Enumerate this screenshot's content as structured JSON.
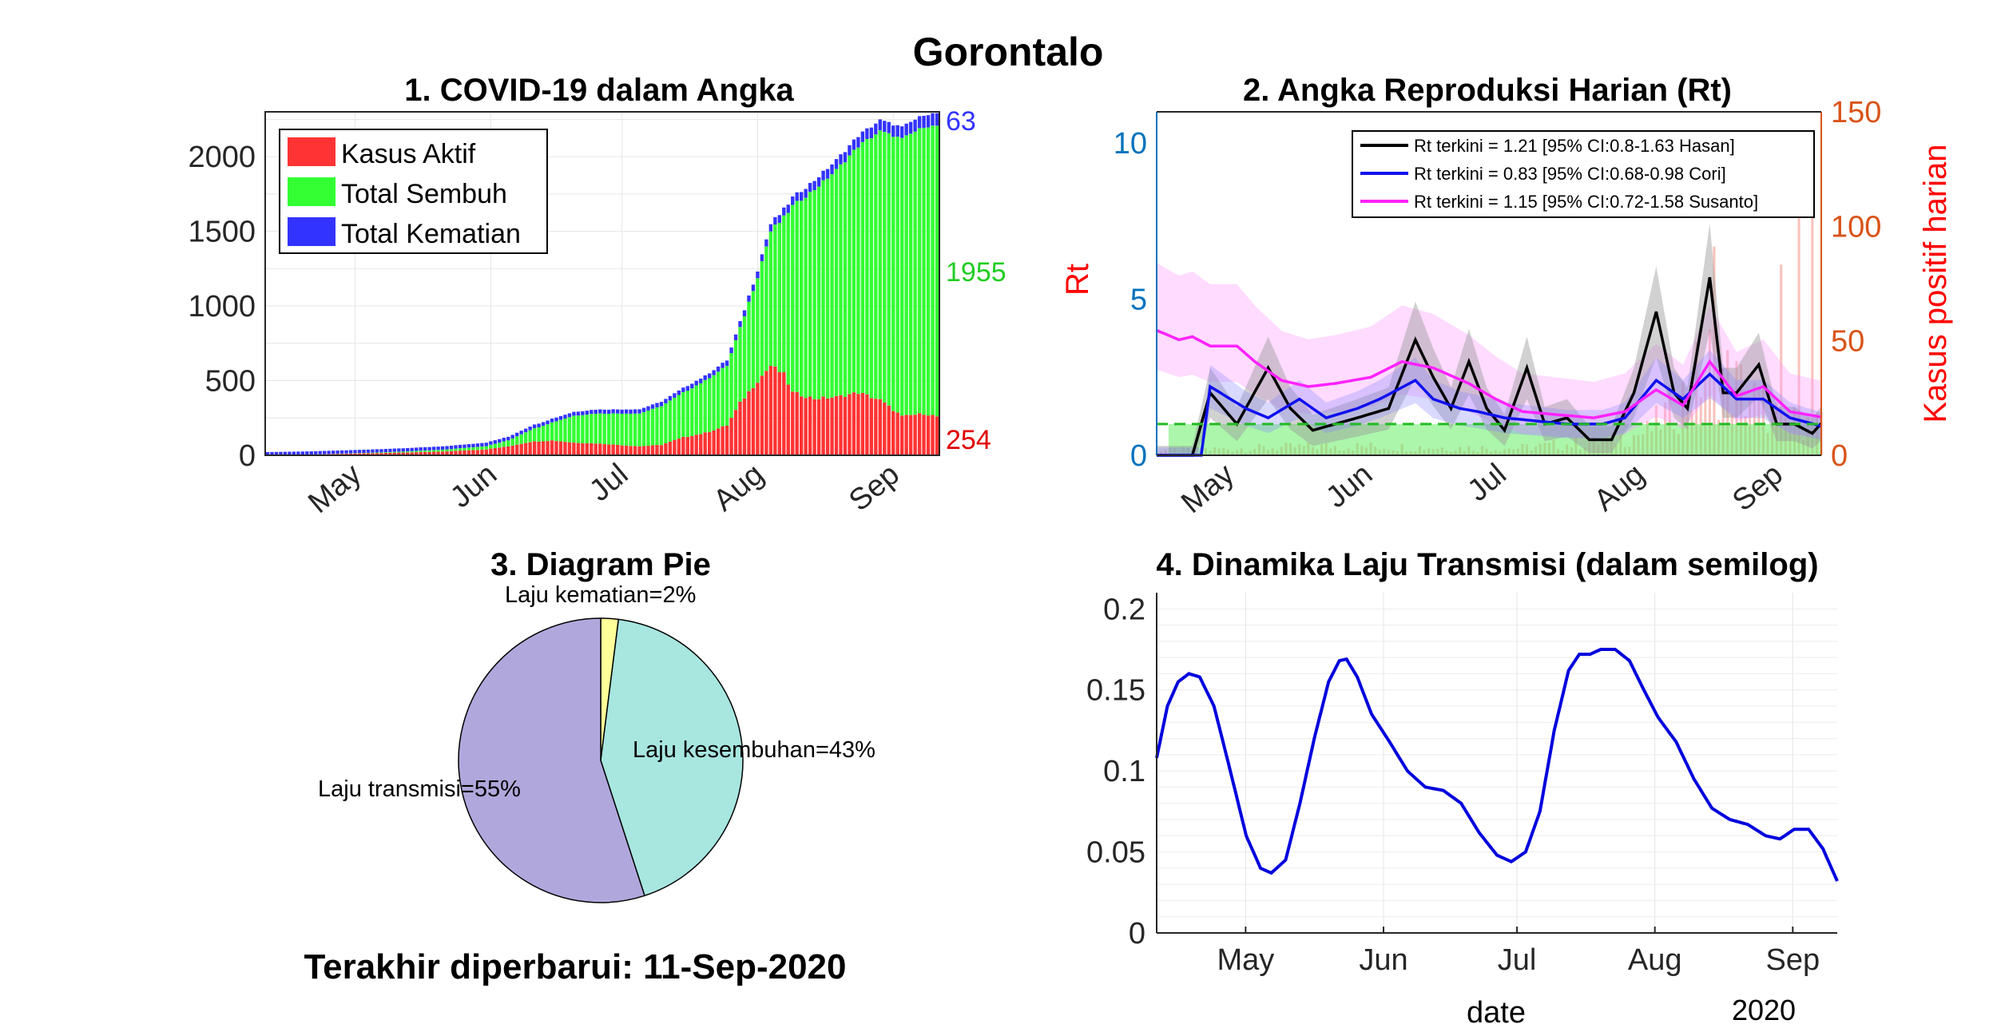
{
  "page_title": "Gorontalo",
  "footer": "Terakhir diperbarui: 11-Sep-2020",
  "colors": {
    "active": "#ff3333",
    "recovered": "#33ff33",
    "deaths": "#3333ff",
    "rt_hasan": "#000000",
    "rt_cori": "#1010ee",
    "rt_susanto": "#ff22ff",
    "left_axis": "#0072bd",
    "right_axis": "#d95319",
    "rt_label": "#ff0000",
    "pie_transmisi": "#b0a8dc",
    "pie_kesembuhan": "#a8e6e0",
    "pie_kematian": "#ffff99"
  },
  "chart_data": [
    {
      "id": "panel1",
      "type": "bar",
      "stacked": true,
      "title": "1. COVID-19 dalam Angka",
      "x_range": [
        "2020-04-11",
        "2020-09-11"
      ],
      "x_ticks": [
        "May",
        "Jun",
        "Jul",
        "Aug",
        "Sep"
      ],
      "ylim": [
        0,
        2300
      ],
      "y_ticks": [
        0,
        500,
        1000,
        1500,
        2000
      ],
      "legend": {
        "position": "top-left",
        "entries": [
          "Kasus Aktif",
          "Total Sembuh",
          "Total Kematian"
        ]
      },
      "grid": true,
      "end_labels": {
        "deaths": "63",
        "recovered": "1955",
        "active": "254"
      },
      "series": [
        {
          "name": "Kasus Aktif",
          "keys": [
            [
              0,
              0
            ],
            [
              10,
              5
            ],
            [
              20,
              12
            ],
            [
              30,
              18
            ],
            [
              40,
              25
            ],
            [
              50,
              40
            ],
            [
              55,
              60
            ],
            [
              60,
              90
            ],
            [
              65,
              100
            ],
            [
              70,
              85
            ],
            [
              75,
              80
            ],
            [
              80,
              70
            ],
            [
              85,
              60
            ],
            [
              90,
              70
            ],
            [
              95,
              120
            ],
            [
              100,
              150
            ],
            [
              105,
              200
            ],
            [
              108,
              350
            ],
            [
              112,
              500
            ],
            [
              115,
              600
            ],
            [
              118,
              540
            ],
            [
              120,
              420
            ],
            [
              125,
              380
            ],
            [
              130,
              390
            ],
            [
              135,
              420
            ],
            [
              140,
              370
            ],
            [
              145,
              260
            ],
            [
              150,
              280
            ],
            [
              154,
              254
            ]
          ]
        },
        {
          "name": "Total Sembuh",
          "keys": [
            [
              0,
              0
            ],
            [
              10,
              0
            ],
            [
              20,
              2
            ],
            [
              30,
              6
            ],
            [
              40,
              12
            ],
            [
              50,
              22
            ],
            [
              55,
              40
            ],
            [
              60,
              80
            ],
            [
              65,
              120
            ],
            [
              70,
              180
            ],
            [
              75,
              200
            ],
            [
              80,
              210
            ],
            [
              85,
              220
            ],
            [
              90,
              260
            ],
            [
              95,
              300
            ],
            [
              100,
              350
            ],
            [
              105,
              400
            ],
            [
              108,
              500
            ],
            [
              112,
              700
            ],
            [
              115,
              900
            ],
            [
              118,
              1050
            ],
            [
              120,
              1250
            ],
            [
              125,
              1400
            ],
            [
              130,
              1520
            ],
            [
              135,
              1650
            ],
            [
              140,
              1800
            ],
            [
              145,
              1860
            ],
            [
              150,
              1920
            ],
            [
              154,
              1955
            ]
          ]
        },
        {
          "name": "Total Kematian",
          "keys": [
            [
              0,
              0
            ],
            [
              20,
              0
            ],
            [
              40,
              1
            ],
            [
              60,
              3
            ],
            [
              80,
              6
            ],
            [
              100,
              10
            ],
            [
              110,
              20
            ],
            [
              120,
              35
            ],
            [
              130,
              45
            ],
            [
              140,
              52
            ],
            [
              150,
              60
            ],
            [
              154,
              63
            ]
          ]
        }
      ]
    },
    {
      "id": "panel2",
      "type": "line",
      "title": "2. Angka Reproduksi Harian (Rt)",
      "x_range": [
        "2020-04-15",
        "2020-09-11"
      ],
      "x_ticks": [
        "May",
        "Jun",
        "Jul",
        "Aug",
        "Sep"
      ],
      "left_axis": {
        "label": "Rt",
        "ylim": [
          0,
          11
        ],
        "ticks": [
          0,
          5,
          10
        ]
      },
      "right_axis": {
        "label": "Kasus positif harian",
        "ylim": [
          0,
          150
        ],
        "ticks": [
          0,
          50,
          100,
          150
        ]
      },
      "threshold": 1,
      "legend": {
        "position": "top-right",
        "entries": [
          "Rt terkini = 1.21 [95% CI:0.8-1.63 Hasan]",
          "Rt terkini = 0.83 [95% CI:0.68-0.98 Cori]",
          "Rt terkini = 1.15 [95% CI:0.72-1.58 Susanto]"
        ]
      },
      "series": [
        {
          "name": "Hasan",
          "keys": [
            [
              0,
              0
            ],
            [
              8,
              0
            ],
            [
              12,
              2
            ],
            [
              18,
              1
            ],
            [
              25,
              2.8
            ],
            [
              30,
              1.5
            ],
            [
              35,
              0.8
            ],
            [
              40,
              1
            ],
            [
              45,
              1.2
            ],
            [
              52,
              1.5
            ],
            [
              58,
              3.7
            ],
            [
              62,
              2.5
            ],
            [
              66,
              1.5
            ],
            [
              70,
              3
            ],
            [
              74,
              1.5
            ],
            [
              78,
              0.8
            ],
            [
              83,
              2.8
            ],
            [
              87,
              1
            ],
            [
              92,
              1.2
            ],
            [
              97,
              0.5
            ],
            [
              102,
              0.5
            ],
            [
              107,
              2
            ],
            [
              112,
              4.6
            ],
            [
              116,
              2
            ],
            [
              119,
              1.5
            ],
            [
              124,
              5.7
            ],
            [
              127,
              2
            ],
            [
              130,
              2
            ],
            [
              135,
              2.9
            ],
            [
              139,
              1
            ],
            [
              143,
              1
            ],
            [
              147,
              0.7
            ],
            [
              152,
              1.5
            ],
            [
              157,
              0.5
            ],
            [
              160,
              1.2
            ],
            [
              165,
              1.7
            ],
            [
              168,
              1
            ],
            [
              175,
              2.3
            ],
            [
              179,
              1.3
            ],
            [
              182,
              1.2
            ]
          ]
        },
        {
          "name": "Cori",
          "keys": [
            [
              0,
              0
            ],
            [
              10,
              0
            ],
            [
              12,
              2.2
            ],
            [
              20,
              1.5
            ],
            [
              25,
              1.2
            ],
            [
              32,
              1.8
            ],
            [
              38,
              1.2
            ],
            [
              45,
              1.5
            ],
            [
              50,
              1.8
            ],
            [
              58,
              2.4
            ],
            [
              62,
              1.8
            ],
            [
              68,
              1.5
            ],
            [
              72,
              1.4
            ],
            [
              78,
              1.2
            ],
            [
              85,
              1.1
            ],
            [
              92,
              1
            ],
            [
              100,
              1
            ],
            [
              105,
              1.2
            ],
            [
              112,
              2.4
            ],
            [
              118,
              1.8
            ],
            [
              124,
              2.6
            ],
            [
              130,
              1.8
            ],
            [
              136,
              1.8
            ],
            [
              142,
              1.2
            ],
            [
              150,
              0.9
            ],
            [
              158,
              0.8
            ],
            [
              165,
              0.9
            ],
            [
              172,
              1.2
            ],
            [
              178,
              1.1
            ],
            [
              182,
              0.83
            ]
          ]
        },
        {
          "name": "Susanto",
          "keys": [
            [
              0,
              4
            ],
            [
              5,
              3.7
            ],
            [
              8,
              3.8
            ],
            [
              12,
              3.5
            ],
            [
              18,
              3.5
            ],
            [
              22,
              3
            ],
            [
              28,
              2.4
            ],
            [
              34,
              2.2
            ],
            [
              40,
              2.3
            ],
            [
              48,
              2.5
            ],
            [
              55,
              3
            ],
            [
              62,
              2.8
            ],
            [
              70,
              2.3
            ],
            [
              76,
              1.8
            ],
            [
              82,
              1.4
            ],
            [
              90,
              1.3
            ],
            [
              98,
              1.2
            ],
            [
              105,
              1.4
            ],
            [
              112,
              2.1
            ],
            [
              118,
              1.6
            ],
            [
              124,
              3
            ],
            [
              130,
              1.9
            ],
            [
              136,
              2.2
            ],
            [
              142,
              1.4
            ],
            [
              150,
              1.2
            ],
            [
              158,
              0.8
            ],
            [
              165,
              1.2
            ],
            [
              172,
              1.3
            ],
            [
              178,
              1.4
            ],
            [
              182,
              1.15
            ]
          ]
        }
      ]
    },
    {
      "id": "panel3",
      "type": "pie",
      "title": "3. Diagram Pie",
      "slices": [
        {
          "label": "Laju kematian=2%",
          "value": 2
        },
        {
          "label": "Laju kesembuhan=43%",
          "value": 43
        },
        {
          "label": "Laju transmisi=55%",
          "value": 55
        }
      ]
    },
    {
      "id": "panel4",
      "type": "line",
      "title": "4. Dinamika Laju Transmisi (dalam semilog)",
      "x_range": [
        "2020-04-11",
        "2020-09-11"
      ],
      "x_ticks": [
        "May",
        "Jun",
        "Jul",
        "Aug",
        "Sep"
      ],
      "xlabel": "date",
      "x_year": "2020",
      "ylim": [
        0,
        0.21
      ],
      "y_ticks": [
        "0",
        "0.05",
        "0.1",
        "0.15",
        "0.2"
      ],
      "grid": true,
      "series": [
        {
          "name": "",
          "keys": [
            [
              0,
              0.108
            ],
            [
              3,
              0.14
            ],
            [
              6,
              0.155
            ],
            [
              9,
              0.16
            ],
            [
              12,
              0.158
            ],
            [
              16,
              0.14
            ],
            [
              20,
              0.105
            ],
            [
              25,
              0.06
            ],
            [
              29,
              0.04
            ],
            [
              32,
              0.037
            ],
            [
              36,
              0.045
            ],
            [
              40,
              0.08
            ],
            [
              44,
              0.12
            ],
            [
              48,
              0.155
            ],
            [
              51,
              0.168
            ],
            [
              53,
              0.169
            ],
            [
              56,
              0.158
            ],
            [
              60,
              0.135
            ],
            [
              65,
              0.118
            ],
            [
              70,
              0.1
            ],
            [
              75,
              0.09
            ],
            [
              80,
              0.088
            ],
            [
              85,
              0.08
            ],
            [
              90,
              0.062
            ],
            [
              95,
              0.048
            ],
            [
              99,
              0.044
            ],
            [
              103,
              0.05
            ],
            [
              107,
              0.075
            ],
            [
              111,
              0.125
            ],
            [
              115,
              0.162
            ],
            [
              118,
              0.172
            ],
            [
              121,
              0.172
            ],
            [
              124,
              0.175
            ],
            [
              128,
              0.175
            ],
            [
              132,
              0.168
            ],
            [
              136,
              0.15
            ],
            [
              140,
              0.133
            ],
            [
              145,
              0.118
            ],
            [
              150,
              0.095
            ],
            [
              155,
              0.077
            ],
            [
              160,
              0.07
            ],
            [
              165,
              0.067
            ],
            [
              170,
              0.06
            ],
            [
              174,
              0.058
            ],
            [
              178,
              0.064
            ],
            [
              182,
              0.064
            ],
            [
              186,
              0.052
            ],
            [
              190,
              0.032
            ]
          ]
        }
      ]
    }
  ]
}
